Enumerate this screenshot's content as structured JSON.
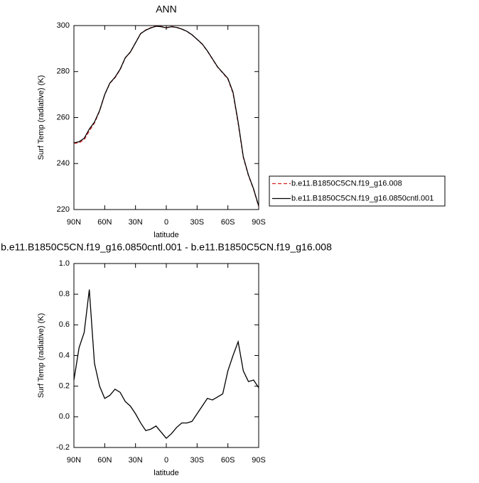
{
  "chart_data": [
    {
      "type": "line",
      "title": "ANN",
      "xlabel": "latitude",
      "ylabel": "Surf Temp (radiative) (K)",
      "x": [
        90,
        85,
        80,
        75,
        70,
        65,
        60,
        55,
        50,
        45,
        40,
        35,
        30,
        25,
        20,
        15,
        10,
        5,
        0,
        -5,
        -10,
        -15,
        -20,
        -25,
        -30,
        -35,
        -40,
        -45,
        -50,
        -55,
        -60,
        -65,
        -70,
        -75,
        -80,
        -85,
        -90
      ],
      "xlim": [
        90,
        -90
      ],
      "xticks": [
        {
          "value": 90,
          "label": "90N"
        },
        {
          "value": 60,
          "label": "60N"
        },
        {
          "value": 30,
          "label": "30N"
        },
        0,
        {
          "value": -30,
          "label": "30S"
        },
        {
          "value": -60,
          "label": "60S"
        },
        {
          "value": -90,
          "label": "90S"
        }
      ],
      "ylim": [
        220,
        300
      ],
      "yticks": [
        220,
        240,
        260,
        280,
        300
      ],
      "series": [
        {
          "name": "b.e11.B1850C5CN.f19_g16.008",
          "color": "#d62020",
          "line_style": "dashed",
          "values": [
            248.8,
            249.0,
            250.4,
            254.2,
            257.6,
            262.8,
            269.9,
            274.9,
            277.3,
            280.8,
            285.9,
            288.4,
            292.5,
            296.5,
            298.1,
            299.1,
            299.8,
            299.6,
            299.1,
            299.6,
            299.3,
            298.5,
            297.5,
            296.0,
            294.0,
            291.9,
            288.9,
            285.4,
            281.9,
            279.4,
            276.7,
            270.6,
            257.5,
            242.7,
            234.8,
            228.8,
            221.3
          ]
        },
        {
          "name": "b.e11.B1850C5CN.f19_g16.0850cntl.001",
          "color": "#000000",
          "line_style": "solid",
          "values": [
            249,
            249.5,
            251,
            255,
            258,
            263,
            270,
            275,
            277.5,
            281,
            286,
            288.5,
            292.5,
            296.5,
            298,
            299,
            299.7,
            299.5,
            299,
            299.5,
            299.2,
            298.5,
            297.5,
            296,
            294,
            292,
            289,
            285.5,
            282,
            279.5,
            277,
            271,
            258,
            243,
            235,
            229,
            221.5
          ]
        }
      ]
    },
    {
      "type": "line",
      "title": "b.e11.B1850C5CN.f19_g16.0850cntl.001 - b.e11.B1850C5CN.f19_g16.008",
      "xlabel": "latitude",
      "ylabel": "Surf Temp (radiative) (K)",
      "x": [
        90,
        85,
        80,
        75,
        70,
        65,
        60,
        55,
        50,
        45,
        40,
        35,
        30,
        25,
        20,
        15,
        10,
        5,
        0,
        -5,
        -10,
        -15,
        -20,
        -25,
        -30,
        -35,
        -40,
        -45,
        -50,
        -55,
        -60,
        -65,
        -70,
        -75,
        -80,
        -85,
        -90
      ],
      "xlim": [
        90,
        -90
      ],
      "xticks": [
        {
          "value": 90,
          "label": "90N"
        },
        {
          "value": 60,
          "label": "60N"
        },
        {
          "value": 30,
          "label": "30N"
        },
        0,
        {
          "value": -30,
          "label": "30S"
        },
        {
          "value": -60,
          "label": "60S"
        },
        {
          "value": -90,
          "label": "90S"
        }
      ],
      "ylim": [
        -0.2,
        1.0
      ],
      "yticks": [
        -0.2,
        {
          "value": 0,
          "label": "0.0"
        },
        0.2,
        0.4,
        0.6,
        0.8,
        {
          "value": 1,
          "label": "1.0"
        }
      ],
      "series": [
        {
          "color": "#000000",
          "line_style": "solid",
          "values": [
            0.24,
            0.45,
            0.55,
            0.83,
            0.35,
            0.2,
            0.12,
            0.14,
            0.18,
            0.16,
            0.1,
            0.07,
            0.02,
            -0.04,
            -0.09,
            -0.08,
            -0.06,
            -0.1,
            -0.14,
            -0.11,
            -0.07,
            -0.04,
            -0.04,
            -0.03,
            0.02,
            0.07,
            0.12,
            0.11,
            0.13,
            0.15,
            0.3,
            0.4,
            0.49,
            0.3,
            0.23,
            0.24,
            0.19
          ]
        }
      ]
    }
  ]
}
